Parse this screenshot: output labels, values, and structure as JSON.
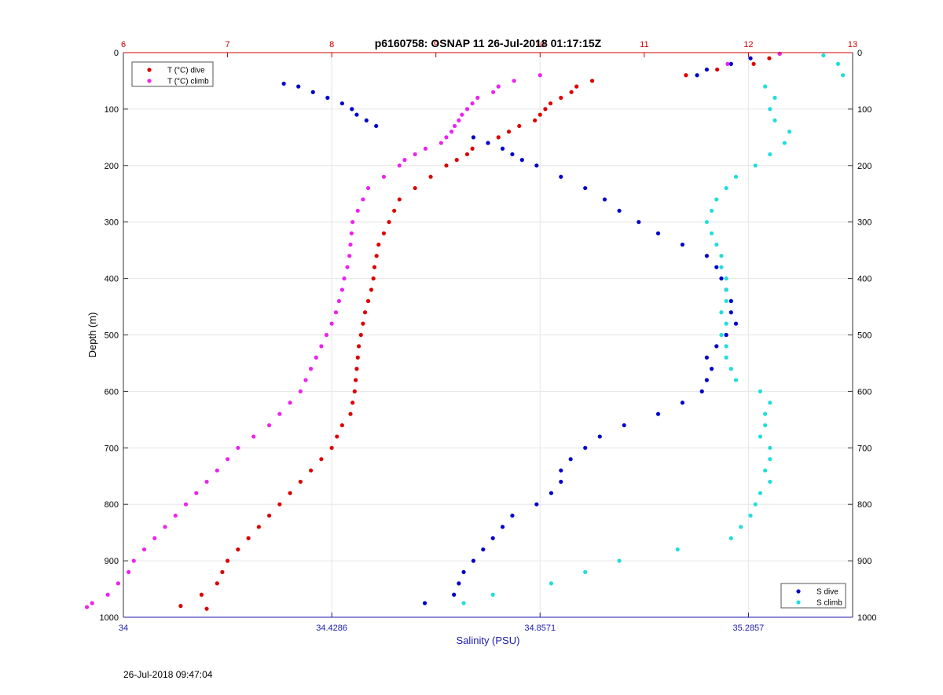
{
  "chart_data": {
    "type": "scatter",
    "title": "p6160758: OSNAP 11 26-Jul-2018 01:17:15Z",
    "ylabel": "Depth (m)",
    "xlabel_bottom": "Salinity (PSU)",
    "ylim": [
      0,
      1000
    ],
    "y_reversed": true,
    "yticks": [
      0,
      100,
      200,
      300,
      400,
      500,
      600,
      700,
      800,
      900,
      1000
    ],
    "bottom_axis": {
      "lim": [
        34,
        35.5
      ],
      "ticks": [
        34,
        34.4286,
        34.8571,
        35.2857
      ],
      "tick_labels": [
        "34",
        "34.4286",
        "34.8571",
        "35.2857"
      ],
      "color": "#1a1aaa"
    },
    "top_axis": {
      "lim": [
        6,
        13
      ],
      "ticks": [
        6,
        7,
        8,
        9,
        10,
        11,
        12,
        13
      ],
      "tick_labels": [
        "6",
        "7",
        "8",
        "9",
        "10",
        "11",
        "12",
        "13"
      ],
      "color": "#cc0000"
    },
    "grid": true,
    "legend_temp": {
      "placement": "top-left",
      "entries": [
        {
          "label": "T (°C) dive",
          "color": "#dd0000"
        },
        {
          "label": "T (°C) climb",
          "color": "#ee22ee"
        }
      ]
    },
    "legend_sal": {
      "placement": "bottom-right",
      "entries": [
        {
          "label": "S dive",
          "color": "#0000cc"
        },
        {
          "label": "S climb",
          "color": "#22dddd"
        }
      ]
    },
    "series": [
      {
        "name": "T (°C) dive",
        "axis": "top",
        "color": "#dd0000",
        "depth": [
          2,
          10,
          20,
          30,
          40,
          50,
          60,
          70,
          80,
          90,
          100,
          110,
          120,
          130,
          140,
          150,
          160,
          170,
          180,
          190,
          200,
          220,
          240,
          260,
          280,
          300,
          320,
          340,
          360,
          380,
          400,
          420,
          440,
          460,
          480,
          500,
          520,
          540,
          560,
          580,
          600,
          620,
          640,
          660,
          680,
          700,
          720,
          740,
          760,
          780,
          800,
          820,
          840,
          860,
          880,
          900,
          920,
          940,
          960,
          980,
          985
        ],
        "values": [
          12.3,
          12.2,
          12.05,
          11.7,
          11.4,
          10.5,
          10.35,
          10.3,
          10.2,
          10.1,
          10.05,
          10.0,
          9.95,
          9.8,
          9.7,
          9.6,
          9.5,
          9.35,
          9.3,
          9.2,
          9.1,
          8.95,
          8.8,
          8.65,
          8.6,
          8.55,
          8.5,
          8.45,
          8.43,
          8.41,
          8.4,
          8.38,
          8.35,
          8.32,
          8.3,
          8.28,
          8.26,
          8.25,
          8.24,
          8.23,
          8.22,
          8.2,
          8.18,
          8.1,
          8.05,
          8.0,
          7.9,
          7.8,
          7.7,
          7.6,
          7.5,
          7.4,
          7.3,
          7.2,
          7.1,
          7.0,
          6.95,
          6.9,
          6.75,
          6.55,
          6.8
        ]
      },
      {
        "name": "T (°C) climb",
        "axis": "top",
        "color": "#ee22ee",
        "depth": [
          2,
          20,
          40,
          50,
          60,
          70,
          80,
          90,
          100,
          110,
          120,
          130,
          140,
          150,
          160,
          170,
          180,
          190,
          200,
          220,
          240,
          260,
          280,
          300,
          320,
          340,
          360,
          380,
          400,
          420,
          440,
          460,
          480,
          500,
          520,
          540,
          560,
          580,
          600,
          620,
          640,
          660,
          680,
          700,
          720,
          740,
          760,
          780,
          800,
          820,
          840,
          860,
          880,
          900,
          920,
          940,
          960,
          975,
          982
        ],
        "values": [
          12.3,
          11.8,
          10.0,
          9.75,
          9.6,
          9.55,
          9.4,
          9.35,
          9.3,
          9.25,
          9.22,
          9.18,
          9.15,
          9.1,
          9.05,
          8.9,
          8.8,
          8.7,
          8.65,
          8.5,
          8.35,
          8.3,
          8.25,
          8.2,
          8.19,
          8.18,
          8.17,
          8.15,
          8.12,
          8.1,
          8.07,
          8.04,
          8.0,
          7.95,
          7.9,
          7.85,
          7.8,
          7.75,
          7.7,
          7.6,
          7.5,
          7.4,
          7.25,
          7.1,
          7.0,
          6.9,
          6.8,
          6.7,
          6.6,
          6.5,
          6.4,
          6.3,
          6.2,
          6.1,
          6.05,
          5.95,
          5.85,
          5.7,
          5.65
        ]
      },
      {
        "name": "S dive",
        "axis": "bottom",
        "color": "#0000cc",
        "depth": [
          10,
          20,
          30,
          40,
          55,
          60,
          70,
          80,
          90,
          100,
          110,
          120,
          130,
          150,
          160,
          170,
          180,
          190,
          200,
          220,
          240,
          260,
          280,
          300,
          320,
          340,
          360,
          380,
          400,
          420,
          440,
          460,
          480,
          500,
          520,
          540,
          560,
          580,
          600,
          620,
          640,
          660,
          680,
          700,
          720,
          740,
          760,
          780,
          800,
          820,
          840,
          860,
          880,
          900,
          920,
          940,
          960,
          975
        ],
        "values": [
          35.29,
          35.25,
          35.2,
          35.18,
          34.33,
          34.36,
          34.39,
          34.42,
          34.45,
          34.47,
          34.48,
          34.5,
          34.52,
          34.72,
          34.75,
          34.78,
          34.8,
          34.82,
          34.85,
          34.9,
          34.95,
          34.99,
          35.02,
          35.06,
          35.1,
          35.15,
          35.2,
          35.22,
          35.23,
          35.24,
          35.25,
          35.25,
          35.26,
          35.24,
          35.22,
          35.2,
          35.21,
          35.2,
          35.19,
          35.15,
          35.1,
          35.03,
          34.98,
          34.95,
          34.92,
          34.9,
          34.9,
          34.88,
          34.85,
          34.8,
          34.78,
          34.76,
          34.74,
          34.72,
          34.7,
          34.69,
          34.68,
          34.62
        ]
      },
      {
        "name": "S climb",
        "axis": "bottom",
        "color": "#22dddd",
        "depth": [
          5,
          20,
          40,
          60,
          80,
          100,
          120,
          140,
          160,
          180,
          200,
          220,
          240,
          260,
          280,
          300,
          320,
          340,
          360,
          380,
          400,
          420,
          440,
          460,
          480,
          500,
          520,
          540,
          560,
          580,
          600,
          620,
          640,
          660,
          680,
          700,
          720,
          740,
          760,
          780,
          800,
          820,
          840,
          860,
          880,
          900,
          920,
          940,
          960,
          975
        ],
        "values": [
          35.44,
          35.47,
          35.48,
          35.32,
          35.34,
          35.33,
          35.34,
          35.37,
          35.36,
          35.33,
          35.3,
          35.26,
          35.24,
          35.22,
          35.21,
          35.2,
          35.21,
          35.22,
          35.23,
          35.23,
          35.24,
          35.24,
          35.24,
          35.23,
          35.24,
          35.23,
          35.24,
          35.24,
          35.25,
          35.26,
          35.31,
          35.33,
          35.32,
          35.32,
          35.31,
          35.33,
          35.33,
          35.32,
          35.33,
          35.31,
          35.3,
          35.29,
          35.27,
          35.25,
          35.14,
          35.02,
          34.95,
          34.88,
          34.76,
          34.7
        ]
      }
    ]
  },
  "footer": {
    "timestamp": "26-Jul-2018 09:47:04"
  }
}
